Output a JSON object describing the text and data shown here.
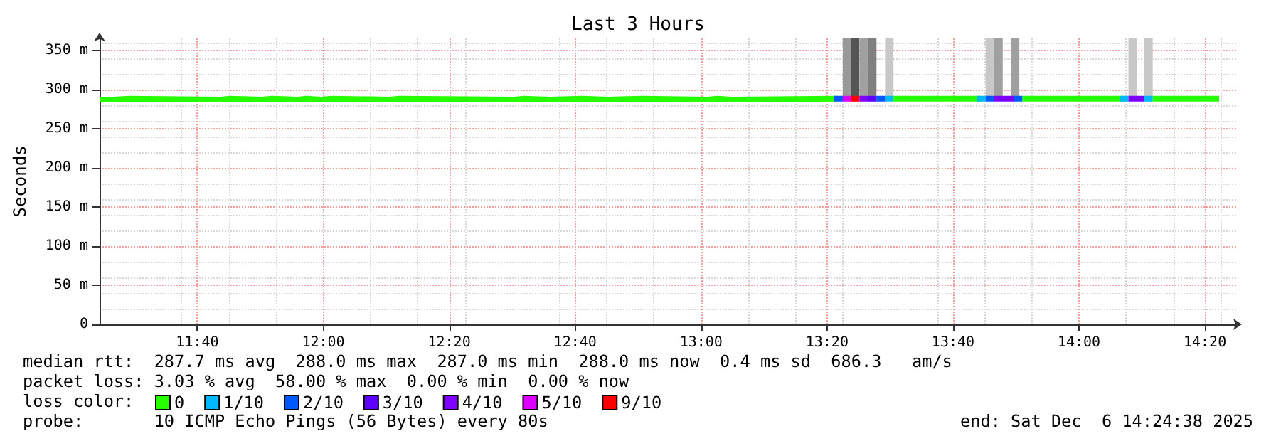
{
  "chart_data": {
    "type": "step",
    "title": "Last 3 Hours",
    "ylabel": "Seconds",
    "legend_title": "loss color:",
    "legend": "bottom left",
    "grid": true,
    "marker": "none",
    "xlim": [
      11.408,
      14.416
    ],
    "xticks": [
      {
        "value": 11.6667,
        "label": "11:40"
      },
      {
        "value": 12,
        "label": "12:00"
      },
      {
        "value": 12.3333,
        "label": "12:20"
      },
      {
        "value": 12.6667,
        "label": "12:40"
      },
      {
        "value": 13,
        "label": "13:00"
      },
      {
        "value": 13.3333,
        "label": "13:20"
      },
      {
        "value": 13.6667,
        "label": "13:40"
      },
      {
        "value": 14,
        "label": "14:00"
      },
      {
        "value": 14.3333,
        "label": "14:20"
      }
    ],
    "ylim": [
      0,
      365
    ],
    "yticks": [
      0,
      {
        "value": 50,
        "label": "50 m"
      },
      {
        "value": 100,
        "label": "100 m"
      },
      {
        "value": 150,
        "label": "150 m"
      },
      {
        "value": 200,
        "label": "200 m"
      },
      {
        "value": 250,
        "label": "250 m"
      },
      {
        "value": 300,
        "label": "300 m"
      },
      {
        "value": 350,
        "label": "350 m"
      }
    ],
    "series": [
      {
        "type": "bar",
        "x": [
          13.386,
          13.408,
          13.431,
          13.453,
          13.498,
          13.764,
          13.787,
          13.831,
          14.142,
          14.184
        ],
        "base": [
          288,
          288,
          288,
          288,
          288,
          288,
          288,
          288,
          288,
          288
        ],
        "values": [
          77,
          77,
          77,
          77,
          77,
          77,
          77,
          77,
          77,
          77
        ],
        "colors": [
          "#999999",
          "#555555",
          "#a0a0a0",
          "#808080",
          "#c8c8c8",
          "#c8c8c8",
          "#a0a0a0",
          "#a0a0a0",
          "#c8c8c8",
          "#c8c8c8"
        ]
      },
      {
        "name": "0",
        "color": "#26ff00",
        "x": [
          11.408,
          11.446,
          11.487,
          11.73,
          11.753,
          11.839,
          11.865,
          11.933,
          11.955,
          11.996,
          12.022,
          12.176,
          12.202,
          12.506,
          12.532,
          12.599,
          12.685,
          12.753,
          12.843,
          13.019,
          13.041,
          13.082,
          13.352,
          13.36,
          13.509,
          13.73,
          13.74,
          13.85,
          14.109,
          14.12,
          14.195,
          14.371
        ],
        "values": [
          287,
          288,
          287,
          288,
          287,
          288,
          287,
          288,
          287,
          288,
          287,
          288,
          287,
          288,
          287,
          288,
          287,
          288,
          287,
          288,
          287,
          288,
          288,
          null,
          288,
          288,
          null,
          288,
          288,
          null,
          288,
          288
        ]
      },
      {
        "name": "1/10",
        "type": "line",
        "color": "#00b8ff",
        "x": [
          13.487,
          13.509,
          13.52,
          13.73,
          13.753,
          13.76,
          14.109,
          14.131,
          14.14,
          14.172,
          14.195
        ],
        "values": [
          288,
          288,
          null,
          288,
          288,
          null,
          288,
          288,
          null,
          288,
          288
        ]
      },
      {
        "name": "2/10",
        "type": "line",
        "color": "#0059ff",
        "x": [
          13.352,
          13.375,
          13.38,
          13.464,
          13.487,
          13.5,
          13.753,
          13.775,
          13.78,
          13.828,
          13.85
        ],
        "values": [
          288,
          288,
          null,
          288,
          288,
          null,
          288,
          288,
          null,
          288,
          288
        ]
      },
      {
        "name": "3/10",
        "type": "line",
        "color": "#5e00ff",
        "x": [
          13.442,
          13.464
        ],
        "values": [
          288,
          288
        ]
      },
      {
        "name": "4/10",
        "type": "line",
        "color": "#7e00ff",
        "x": [
          13.419,
          13.442,
          13.45,
          13.775,
          13.828,
          13.84,
          14.131,
          14.172
        ],
        "values": [
          288,
          288,
          null,
          288,
          288,
          null,
          288,
          288
        ]
      },
      {
        "name": "5/10",
        "type": "line",
        "color": "#dd00ff",
        "x": [
          13.375,
          13.397
        ],
        "values": [
          288,
          288
        ]
      },
      {
        "name": "9/10",
        "type": "line",
        "color": "#ff0000",
        "x": [
          13.397,
          13.419
        ],
        "values": [
          288,
          288
        ]
      }
    ],
    "annotations": [
      "median rtt:  287.7 ms avg  288.0 ms max  287.0 ms min  288.0 ms now  0.4 ms sd  686.3   am/s",
      "packet loss: 3.03 % avg  58.00 % max  0.00 % min  0.00 % now",
      "probe:       10 ICMP Echo Pings (56 Bytes) every 80s",
      "end: Sat Dec  6 14:24:38 2025"
    ]
  }
}
